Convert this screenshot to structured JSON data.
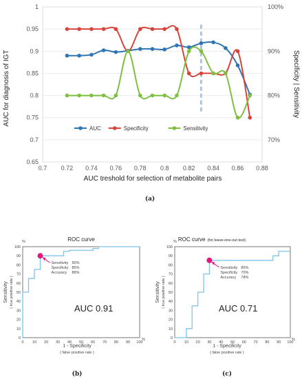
{
  "panel_labels": {
    "a": "(a)",
    "b": "(b)",
    "c": "(c)"
  },
  "chart_data": [
    {
      "type": "line",
      "panel": "a",
      "xlabel": "AUC treshold for selection of metabolite pairs",
      "ylabel": "AUC for diagnosis of  IGT",
      "y2label": "Specificity | Sensitivity",
      "xlim": [
        0.7,
        0.88
      ],
      "ylim": [
        0.65,
        1.0
      ],
      "y2lim": [
        0.65,
        1.0
      ],
      "x_ticks": [
        "0.7",
        "0.72",
        "0.74",
        "0.76",
        "0.78",
        "0.8",
        "0.82",
        "0.84",
        "0.86",
        "0.88"
      ],
      "y_ticks": [
        "0.65",
        "0.7",
        "0.75",
        "0.8",
        "0.85",
        "0.9",
        "0.95",
        "1"
      ],
      "y2_ticks": [
        {
          "v": 1.0,
          "label": "100%"
        },
        {
          "v": 0.9,
          "label": "90%"
        },
        {
          "v": 0.8,
          "label": "80%"
        },
        {
          "v": 0.7,
          "label": "70%"
        }
      ],
      "marker_line_x": 0.83,
      "legend_placement": "lower-center",
      "x": [
        0.72,
        0.73,
        0.74,
        0.75,
        0.76,
        0.77,
        0.78,
        0.79,
        0.8,
        0.81,
        0.82,
        0.83,
        0.84,
        0.85,
        0.86,
        0.87
      ],
      "series": [
        {
          "name": "AUC",
          "color": "#2e75b6",
          "values": [
            0.89,
            0.89,
            0.892,
            0.902,
            0.898,
            0.901,
            0.905,
            0.905,
            0.904,
            0.913,
            0.909,
            0.918,
            0.92,
            0.907,
            0.868,
            0.802
          ]
        },
        {
          "name": "Specificity",
          "color": "#d9433a",
          "values": [
            0.95,
            0.95,
            0.95,
            0.95,
            0.95,
            0.9,
            0.95,
            0.95,
            0.95,
            0.95,
            0.85,
            0.85,
            0.85,
            0.85,
            0.9,
            0.75
          ]
        },
        {
          "name": "Sensitivity",
          "color": "#7fbf3f",
          "values": [
            0.8,
            0.8,
            0.8,
            0.8,
            0.8,
            0.9,
            0.8,
            0.8,
            0.8,
            0.8,
            0.9,
            0.9,
            0.85,
            0.85,
            0.75,
            0.8
          ]
        }
      ]
    },
    {
      "type": "line",
      "panel": "b",
      "title": "ROC curve",
      "xlabel": "1 - Specificity",
      "xlabel_sub": "( false positive rate )",
      "ylabel": "Sensitivity",
      "ylabel_sub": "( true positive rate )",
      "unit": "%",
      "xlim": [
        0,
        100
      ],
      "ylim": [
        0,
        100
      ],
      "ticks": [
        "0",
        "10",
        "20",
        "30",
        "40",
        "50",
        "60",
        "70",
        "80",
        "90",
        "100"
      ],
      "auc_label": "AUC  0.91",
      "point": {
        "x": 15,
        "y": 90
      },
      "annotation": [
        {
          "name": "Sensitivity",
          "value": "90%"
        },
        {
          "name": "Specificity",
          "value": "85%"
        },
        {
          "name": "Accuracy",
          "value": "88%"
        }
      ],
      "curve": {
        "x": [
          0,
          0,
          5,
          5,
          10,
          10,
          15,
          15,
          35,
          35,
          40,
          40,
          60,
          60,
          65,
          65,
          100
        ],
        "y": [
          0,
          50,
          50,
          65,
          65,
          75,
          75,
          90,
          90,
          95,
          95,
          96,
          96,
          98,
          98,
          100,
          100
        ]
      }
    },
    {
      "type": "line",
      "panel": "c",
      "title": "ROC curve",
      "title_note": "(for leave-one-out test)",
      "xlabel": "1 - Specificity",
      "xlabel_sub": "( false positive rate )",
      "ylabel": "Sensitivity",
      "ylabel_sub": "( true positive rate )",
      "unit": "%",
      "xlim": [
        0,
        100
      ],
      "ylim": [
        0,
        100
      ],
      "ticks": [
        "0",
        "10",
        "20",
        "30",
        "40",
        "50",
        "60",
        "70",
        "80",
        "90",
        "100"
      ],
      "auc_label": "AUC 0.71",
      "point": {
        "x": 30,
        "y": 85
      },
      "annotation": [
        {
          "name": "Sensitivity",
          "value": "85%"
        },
        {
          "name": "Specificity",
          "value": "70%"
        },
        {
          "name": "Accuracy",
          "value": "78%"
        }
      ],
      "curve": {
        "x": [
          0,
          10,
          10,
          15,
          15,
          20,
          20,
          25,
          25,
          30,
          30,
          85,
          85,
          90,
          90,
          100
        ],
        "y": [
          0,
          0,
          10,
          10,
          35,
          35,
          50,
          50,
          70,
          70,
          85,
          85,
          90,
          90,
          95,
          95
        ]
      }
    }
  ]
}
